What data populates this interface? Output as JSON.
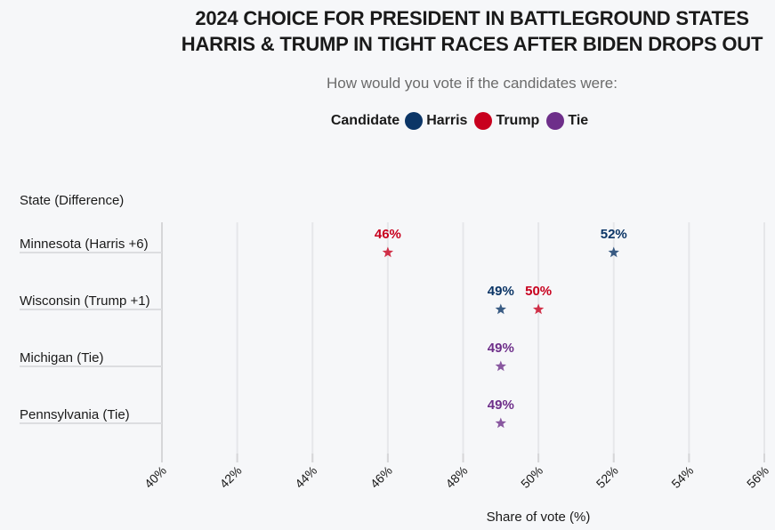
{
  "chart_data": {
    "type": "scatter",
    "title": "2024 CHOICE FOR PRESIDENT IN BATTLEGROUND STATES",
    "subtitle_line2": "HARRIS & TRUMP IN TIGHT RACES AFTER BIDEN DROPS OUT",
    "question": "How would you vote if the candidates were:",
    "legend": {
      "title": "Candidate",
      "entries": [
        {
          "name": "Harris",
          "color": "#0b3566"
        },
        {
          "name": "Trump",
          "color": "#c8001e"
        },
        {
          "name": "Tie",
          "color": "#6e2f8a"
        }
      ],
      "placement": "top-center"
    },
    "ylabel": "State (Difference)",
    "xlabel": "Share of vote (%)",
    "xlim": [
      40,
      56
    ],
    "xticks": [
      "40%",
      "42%",
      "44%",
      "46%",
      "48%",
      "50%",
      "52%",
      "54%",
      "56%"
    ],
    "xtick_values": [
      40,
      42,
      44,
      46,
      48,
      50,
      52,
      54,
      56
    ],
    "grid": true,
    "marker": "star",
    "categories": [
      "Minnesota (Harris +6)",
      "Wisconsin (Trump +1)",
      "Michigan (Tie)",
      "Pennsylvania (Tie)"
    ],
    "points": [
      {
        "state": "Minnesota (Harris +6)",
        "series": "Trump",
        "value": 46,
        "label": "46%"
      },
      {
        "state": "Minnesota (Harris +6)",
        "series": "Harris",
        "value": 52,
        "label": "52%"
      },
      {
        "state": "Wisconsin (Trump +1)",
        "series": "Harris",
        "value": 49,
        "label": "49%"
      },
      {
        "state": "Wisconsin (Trump +1)",
        "series": "Trump",
        "value": 50,
        "label": "50%"
      },
      {
        "state": "Michigan (Tie)",
        "series": "Tie",
        "value": 49,
        "label": "49%"
      },
      {
        "state": "Pennsylvania (Tie)",
        "series": "Tie",
        "value": 49,
        "label": "49%"
      }
    ]
  }
}
